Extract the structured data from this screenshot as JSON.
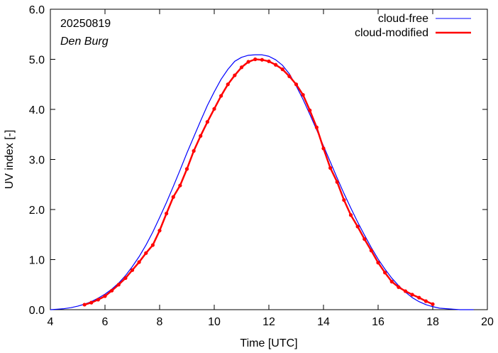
{
  "chart_data": {
    "type": "line",
    "xlabel": "Time  [UTC]",
    "ylabel": "UV index  [-]",
    "xlim": [
      4,
      20
    ],
    "ylim": [
      0,
      6
    ],
    "xticks": [
      4,
      6,
      8,
      10,
      12,
      14,
      16,
      18,
      20
    ],
    "xtick_labels": [
      "4",
      "6",
      "8",
      "10",
      "12",
      "14",
      "16",
      "18",
      "20"
    ],
    "yticks": [
      0,
      1,
      2,
      3,
      4,
      5,
      6
    ],
    "ytick_labels": [
      "0.0",
      "1.0",
      "2.0",
      "3.0",
      "4.0",
      "5.0",
      "6.0"
    ],
    "annotations": {
      "date": "20250819",
      "station": "Den Burg"
    },
    "legend_position": "top-right",
    "grid": false,
    "series": [
      {
        "name": "cloud-free",
        "color": "#0000ff",
        "markers": false,
        "x": [
          4.0,
          4.25,
          4.5,
          4.75,
          5.0,
          5.25,
          5.5,
          5.75,
          6.0,
          6.25,
          6.5,
          6.75,
          7.0,
          7.25,
          7.5,
          7.75,
          8.0,
          8.25,
          8.5,
          8.75,
          9.0,
          9.25,
          9.5,
          9.75,
          10.0,
          10.25,
          10.5,
          10.75,
          11.0,
          11.25,
          11.5,
          11.75,
          12.0,
          12.25,
          12.5,
          12.75,
          13.0,
          13.25,
          13.5,
          13.75,
          14.0,
          14.25,
          14.5,
          14.75,
          15.0,
          15.25,
          15.5,
          15.75,
          16.0,
          16.25,
          16.5,
          16.75,
          17.0,
          17.25,
          17.5,
          17.75,
          18.0,
          18.25,
          18.5,
          18.75,
          19.0,
          19.25,
          19.5
        ],
        "y": [
          0.0,
          0.01,
          0.02,
          0.04,
          0.07,
          0.11,
          0.16,
          0.23,
          0.31,
          0.41,
          0.53,
          0.68,
          0.86,
          1.06,
          1.29,
          1.55,
          1.84,
          2.14,
          2.46,
          2.79,
          3.13,
          3.45,
          3.77,
          4.08,
          4.35,
          4.6,
          4.8,
          4.96,
          5.04,
          5.08,
          5.09,
          5.09,
          5.06,
          4.99,
          4.88,
          4.71,
          4.47,
          4.2,
          3.9,
          3.59,
          3.27,
          2.95,
          2.63,
          2.32,
          2.03,
          1.75,
          1.49,
          1.24,
          1.01,
          0.81,
          0.63,
          0.48,
          0.35,
          0.24,
          0.16,
          0.1,
          0.06,
          0.03,
          0.02,
          0.01,
          0.0,
          0.0,
          0.0
        ]
      },
      {
        "name": "cloud-modified",
        "color": "#ff0000",
        "markers": true,
        "x": [
          5.25,
          5.5,
          5.75,
          6.0,
          6.25,
          6.5,
          6.75,
          7.0,
          7.25,
          7.5,
          7.75,
          8.0,
          8.25,
          8.5,
          8.75,
          9.0,
          9.25,
          9.5,
          9.75,
          10.0,
          10.25,
          10.5,
          10.75,
          11.0,
          11.25,
          11.5,
          11.75,
          12.0,
          12.25,
          12.5,
          12.75,
          13.0,
          13.25,
          13.5,
          13.75,
          14.0,
          14.25,
          14.5,
          14.75,
          15.0,
          15.25,
          15.5,
          15.75,
          16.0,
          16.25,
          16.5,
          16.75,
          17.0,
          17.25,
          17.5,
          17.75,
          18.0
        ],
        "y": [
          0.1,
          0.14,
          0.2,
          0.27,
          0.38,
          0.5,
          0.63,
          0.79,
          0.95,
          1.13,
          1.29,
          1.58,
          1.92,
          2.25,
          2.48,
          2.81,
          3.17,
          3.47,
          3.75,
          4.01,
          4.27,
          4.5,
          4.68,
          4.84,
          4.95,
          5.0,
          4.99,
          4.96,
          4.89,
          4.8,
          4.66,
          4.5,
          4.29,
          3.98,
          3.64,
          3.22,
          2.83,
          2.55,
          2.19,
          1.89,
          1.66,
          1.41,
          1.18,
          0.94,
          0.74,
          0.56,
          0.45,
          0.37,
          0.3,
          0.24,
          0.17,
          0.11
        ]
      }
    ]
  }
}
